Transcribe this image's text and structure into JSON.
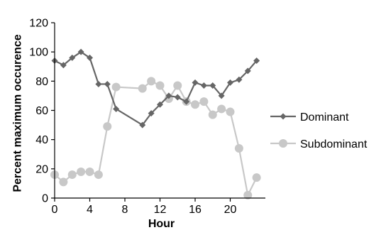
{
  "chart_data": {
    "type": "line",
    "title": "",
    "xlabel": "Hour",
    "ylabel": "Percent maximum occurence",
    "xlim": [
      0,
      24
    ],
    "ylim": [
      0,
      120
    ],
    "xticks": [
      0,
      4,
      8,
      12,
      16,
      20
    ],
    "yticks": [
      0,
      20,
      40,
      60,
      80,
      100,
      120
    ],
    "grid": false,
    "legend_position": "right",
    "series": [
      {
        "name": "Dominant",
        "color": "#666666",
        "marker": "diamond",
        "x": [
          0,
          1,
          2,
          3,
          4,
          5,
          6,
          7,
          10,
          11,
          12,
          13,
          14,
          15,
          16,
          17,
          18,
          19,
          20,
          21,
          22,
          23
        ],
        "y": [
          94,
          91,
          96,
          100,
          96,
          78,
          78,
          61,
          50,
          58,
          64,
          70,
          69,
          66,
          79,
          77,
          77,
          70,
          79,
          81,
          87,
          94
        ]
      },
      {
        "name": "Subdominant",
        "color": "#c8c8c8",
        "marker": "circle",
        "x": [
          0,
          1,
          2,
          3,
          4,
          5,
          6,
          7,
          10,
          11,
          12,
          13,
          14,
          15,
          16,
          17,
          18,
          19,
          20,
          21,
          22,
          23
        ],
        "y": [
          16,
          11,
          16,
          18,
          18,
          16,
          49,
          76,
          75,
          80,
          77,
          68,
          77,
          66,
          64,
          66,
          57,
          61,
          59,
          34,
          2,
          14
        ]
      }
    ]
  }
}
